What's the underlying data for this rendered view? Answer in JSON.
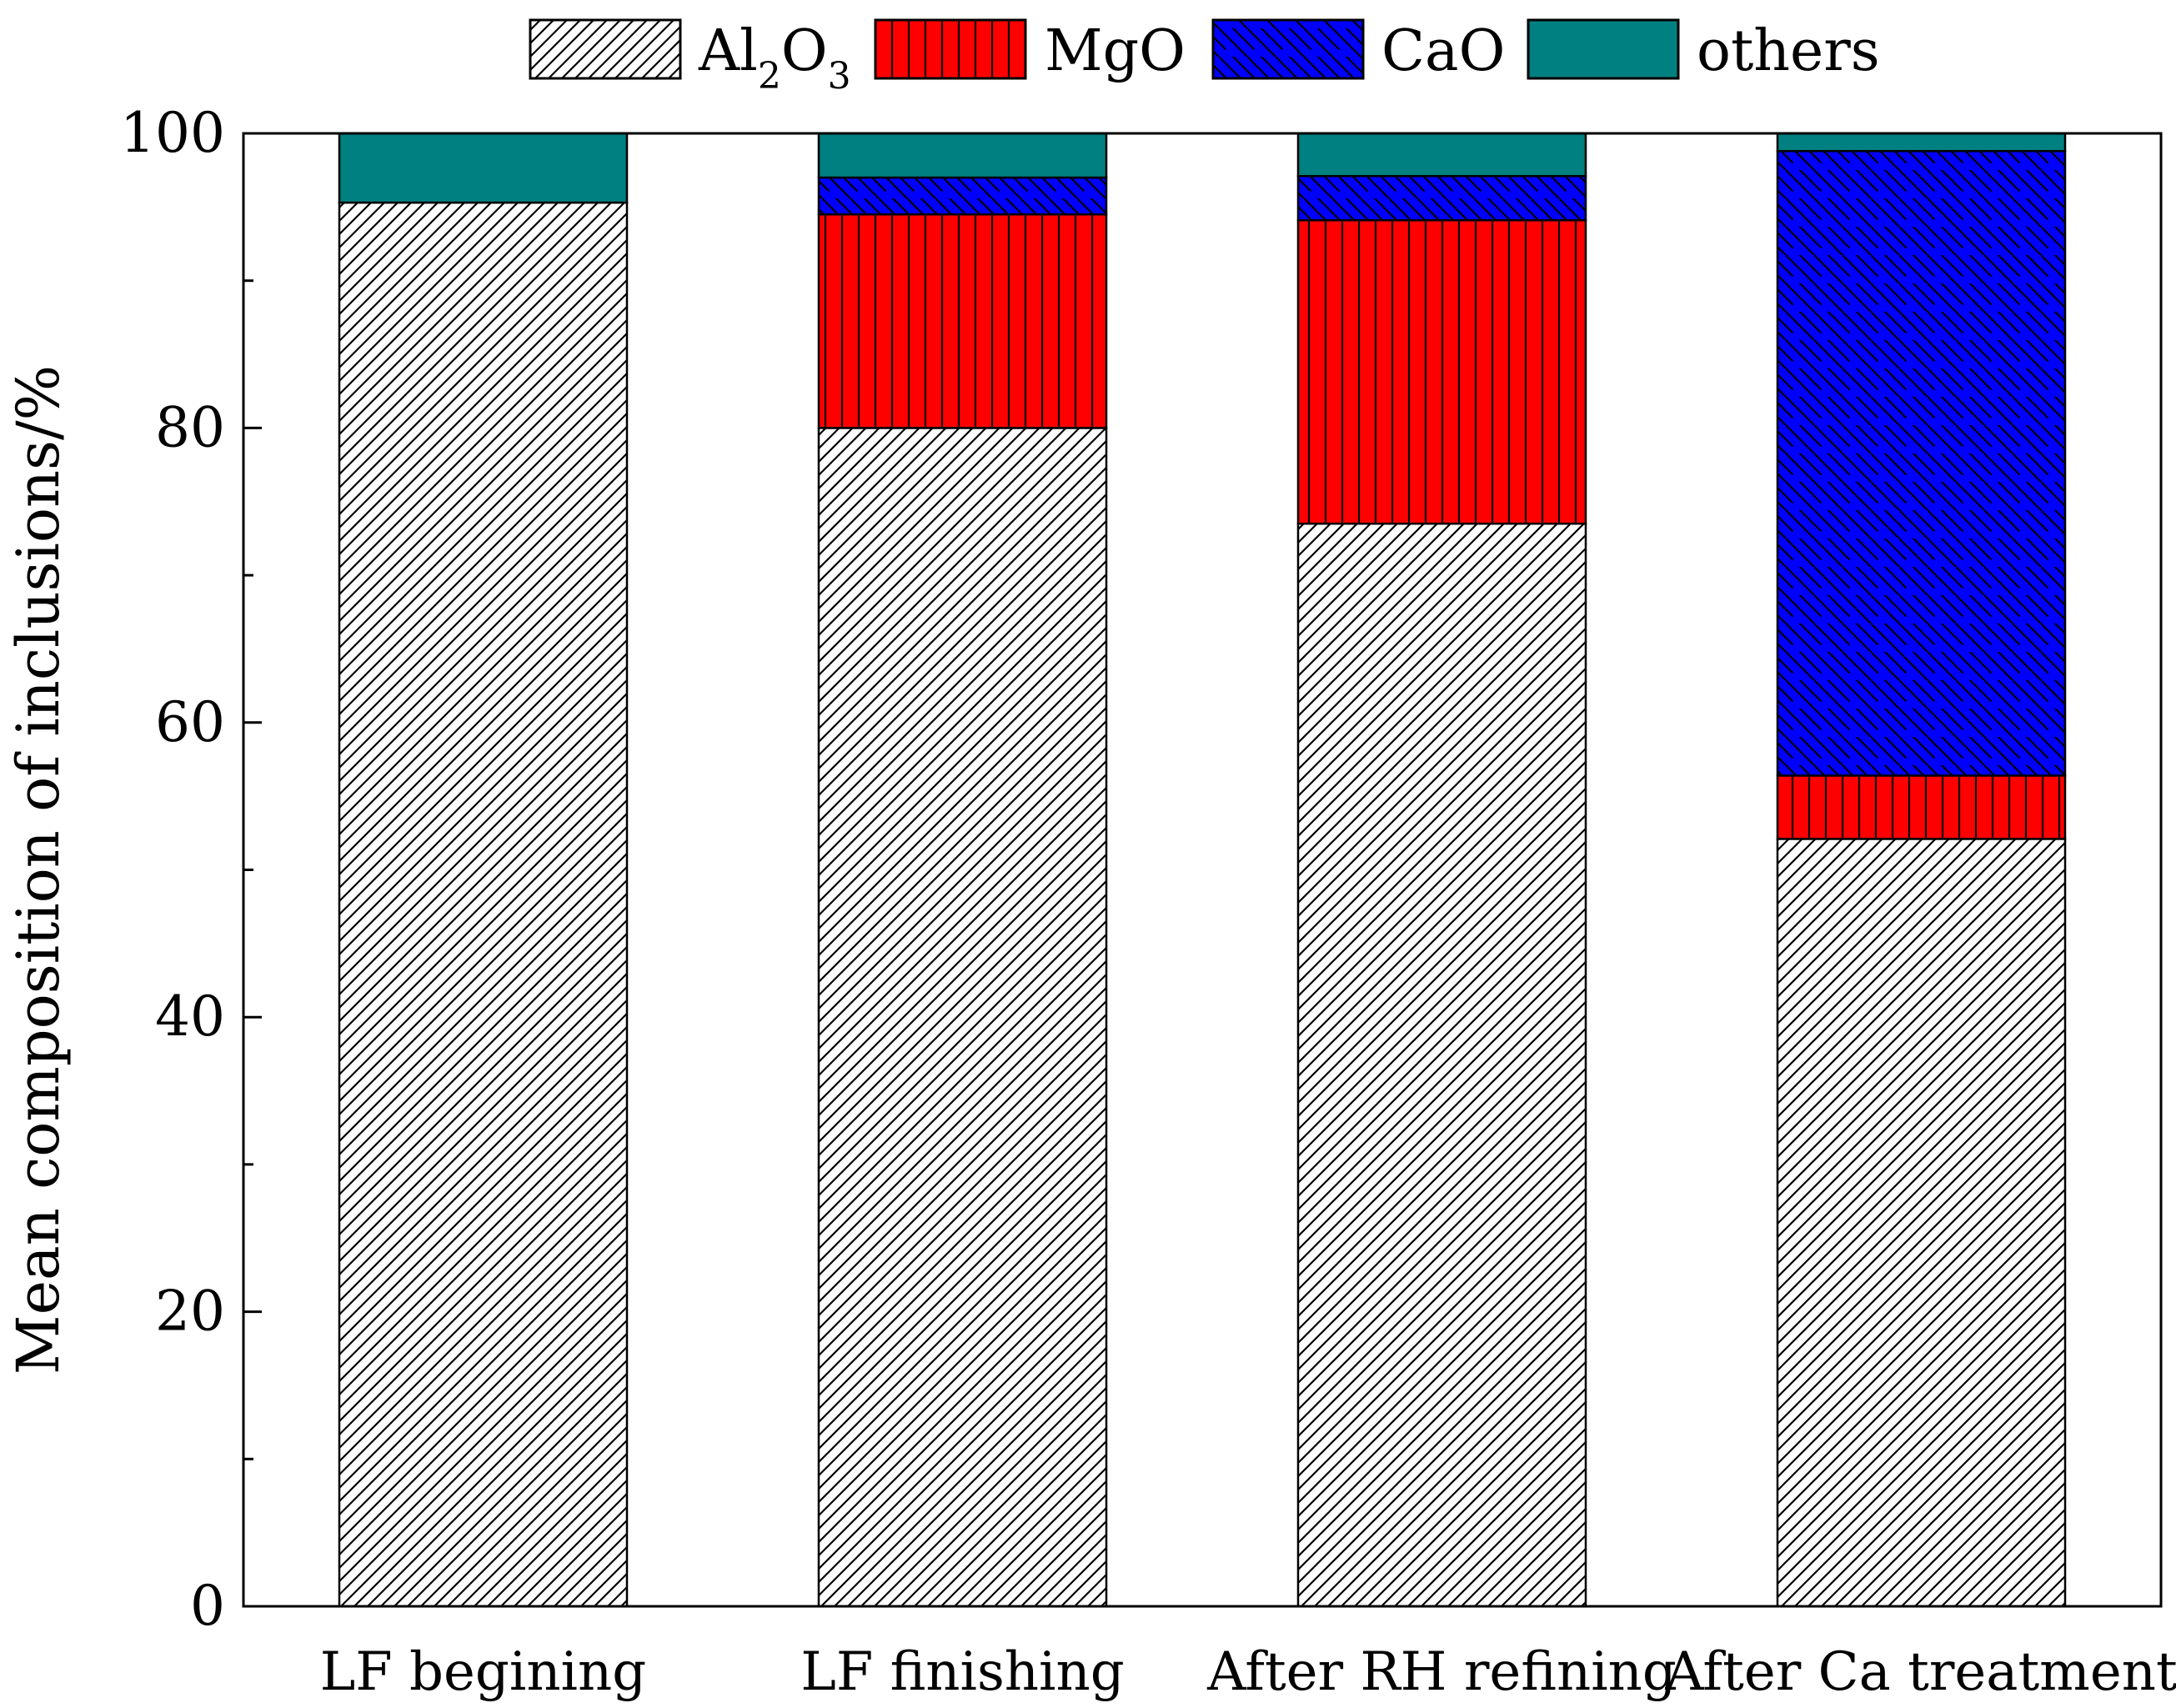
{
  "chart_data": {
    "type": "bar",
    "stacked": true,
    "title": "",
    "xlabel": "",
    "ylabel": "Mean composition of inclusions/%",
    "ylim": [
      0,
      100
    ],
    "yticks": [
      "0",
      "20",
      "40",
      "60",
      "80",
      "100"
    ],
    "minor_tick_step": 10,
    "legend_position": "top",
    "categories": [
      "LF begining",
      "LF finishing",
      "After RH refining",
      "After Ca treatment"
    ],
    "series": [
      {
        "name": "Al2O3",
        "label_main": "Al",
        "label_sub1": "2",
        "label_mid": "O",
        "label_sub2": "3",
        "pattern": "hatch-diagonal",
        "color": "#ffffff",
        "values": [
          95.3,
          80.0,
          73.5,
          52.1
        ]
      },
      {
        "name": "MgO",
        "label": "MgO",
        "pattern": "hatch-vertical",
        "color": "#ff0000",
        "values": [
          0.0,
          14.5,
          20.6,
          4.3
        ]
      },
      {
        "name": "CaO",
        "label": "CaO",
        "pattern": "hatch-backdiagonal",
        "color": "#0000ff",
        "values": [
          0.0,
          2.5,
          3.0,
          42.4
        ]
      },
      {
        "name": "others",
        "label": "others",
        "pattern": "solid",
        "color": "#008080",
        "values": [
          4.7,
          3.0,
          2.9,
          1.2
        ]
      }
    ]
  }
}
